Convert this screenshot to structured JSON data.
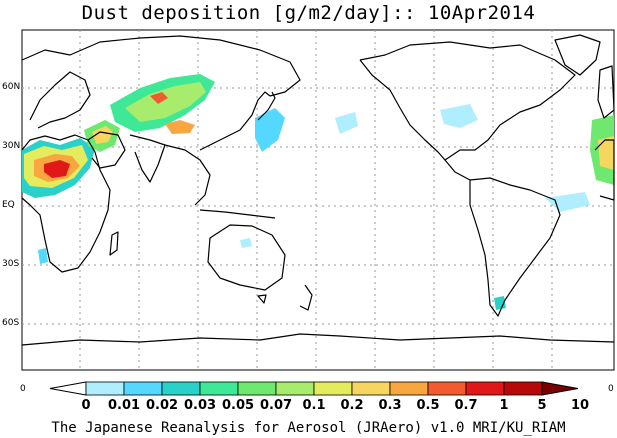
{
  "title": "Dust deposition [g/m2/day]:: 10Apr2014",
  "lat_labels": [
    "60N",
    "30N",
    "EQ",
    "30S",
    "60S"
  ],
  "edge_left": "0",
  "edge_right": "0",
  "colorbar": {
    "labels": [
      "0",
      "0.01",
      "0.02",
      "0.03",
      "0.05",
      "0.07",
      "0.1",
      "0.2",
      "0.3",
      "0.5",
      "0.7",
      "1",
      "5",
      "10"
    ],
    "colors": [
      "#ffffff",
      "#aeeeff",
      "#55d8ff",
      "#2ad1c8",
      "#3ee896",
      "#6ee86e",
      "#a8ec6e",
      "#e4ec5e",
      "#f6d65e",
      "#f8a640",
      "#f45a30",
      "#e01818",
      "#b80808",
      "#7a0000"
    ]
  },
  "credit": "The Japanese Reanalysis for Aerosol (JRAero) v1.0 MRI/KU_RIAM"
}
